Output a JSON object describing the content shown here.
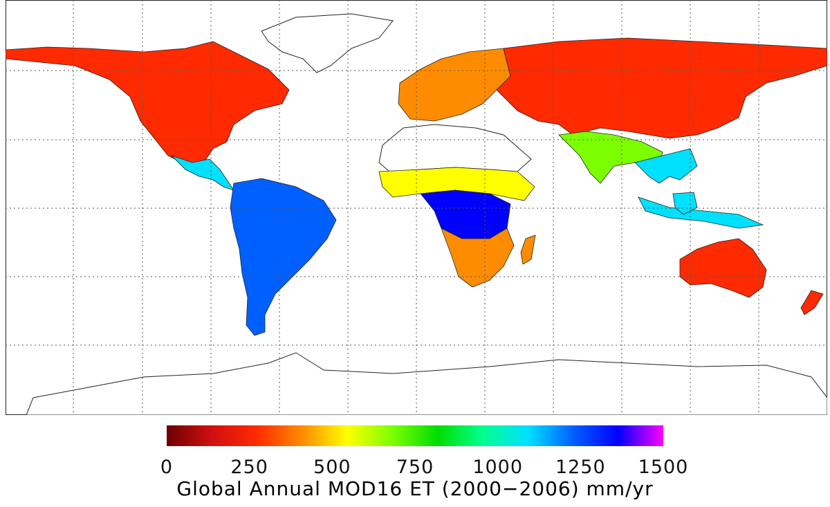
{
  "map": {
    "regions": [
      {
        "name": "north-america",
        "value": 300
      },
      {
        "name": "greenland",
        "value": null
      },
      {
        "name": "central-america",
        "value": 1100
      },
      {
        "name": "south-america",
        "value": 1250
      },
      {
        "name": "europe",
        "value": 400
      },
      {
        "name": "africa-north",
        "value": null
      },
      {
        "name": "africa-sahel",
        "value": 600
      },
      {
        "name": "africa-central",
        "value": 1350
      },
      {
        "name": "africa-south",
        "value": 350
      },
      {
        "name": "asia",
        "value": 220
      },
      {
        "name": "south-asia",
        "value": 650
      },
      {
        "name": "southeast-asia",
        "value": 1150
      },
      {
        "name": "australia",
        "value": 250
      },
      {
        "name": "antarctica",
        "value": null
      }
    ]
  },
  "legend": {
    "color_stops": [
      "#6b0000",
      "#d01010",
      "#ff2a00",
      "#ff8c00",
      "#ffff00",
      "#7cff00",
      "#00dd00",
      "#00ff90",
      "#00e0ff",
      "#0060ff",
      "#0000ff",
      "#ff00ff"
    ],
    "ticks": [
      "0",
      "250",
      "500",
      "750",
      "1000",
      "1250",
      "1500"
    ],
    "range": [
      0,
      1500
    ]
  },
  "caption": "Global Annual MOD16 ET (2000−2006) mm/yr"
}
